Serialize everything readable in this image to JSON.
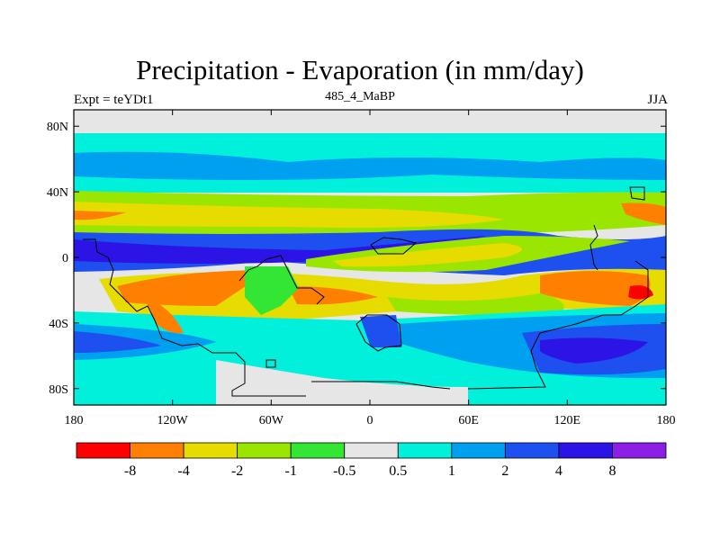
{
  "title": "Precipitation - Evaporation (in mm/day)",
  "experiment": "Expt = teYDt1",
  "period": "485_4_MaBP",
  "season": "JJA",
  "axes": {
    "lon_ticks": [
      {
        "value": -180,
        "label": "180"
      },
      {
        "value": -120,
        "label": "120W"
      },
      {
        "value": -60,
        "label": "60W"
      },
      {
        "value": 0,
        "label": "0"
      },
      {
        "value": 60,
        "label": "60E"
      },
      {
        "value": 120,
        "label": "120E"
      },
      {
        "value": 180,
        "label": "180"
      }
    ],
    "lat_ticks": [
      {
        "value": 80,
        "label": "80N"
      },
      {
        "value": 40,
        "label": "40N"
      },
      {
        "value": 0,
        "label": "0"
      },
      {
        "value": -40,
        "label": "40S"
      },
      {
        "value": -80,
        "label": "80S"
      }
    ],
    "lon_range": [
      -180,
      180
    ],
    "lat_range": [
      -90,
      90
    ]
  },
  "colorbar": {
    "colors": [
      "#ff0000",
      "#ff8000",
      "#e6dc00",
      "#9be600",
      "#33e633",
      "#e6e6e6",
      "#00f0dc",
      "#00a0f0",
      "#1e50f0",
      "#2c14e6",
      "#8c1ee6"
    ],
    "labels": [
      "-8",
      "-4",
      "-2",
      "-1",
      "-0.5",
      "0.5",
      "1",
      "2",
      "4",
      "8"
    ]
  },
  "palette": {
    "neutral": "#e6e6e6",
    "wet1": "#00f0dc",
    "wet2": "#00a0f0",
    "wet3": "#1e50f0",
    "wet4": "#2c14e6",
    "dry05": "#33e633",
    "dry1": "#9be600",
    "dry2": "#e6dc00",
    "dry4": "#ff8000",
    "dry8": "#ff0000"
  }
}
